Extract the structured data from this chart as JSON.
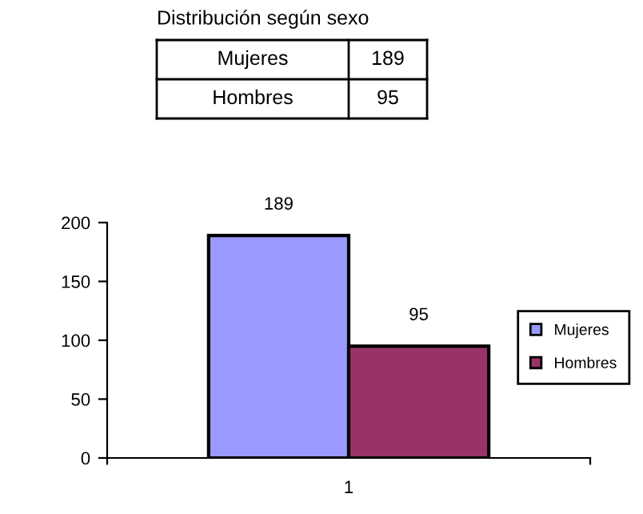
{
  "chart_data": {
    "type": "bar",
    "title": "Distribución según sexo",
    "categories": [
      "1"
    ],
    "series": [
      {
        "name": "Mujeres",
        "color": "#9999ff",
        "values": [
          189
        ]
      },
      {
        "name": "Hombres",
        "color": "#993366",
        "values": [
          95
        ]
      }
    ],
    "ylim": [
      0,
      200
    ],
    "yticks": [
      0,
      50,
      100,
      150,
      200
    ],
    "grid": false,
    "legend": "right",
    "data_labels": true,
    "annotations": [
      "189",
      "95"
    ]
  }
}
